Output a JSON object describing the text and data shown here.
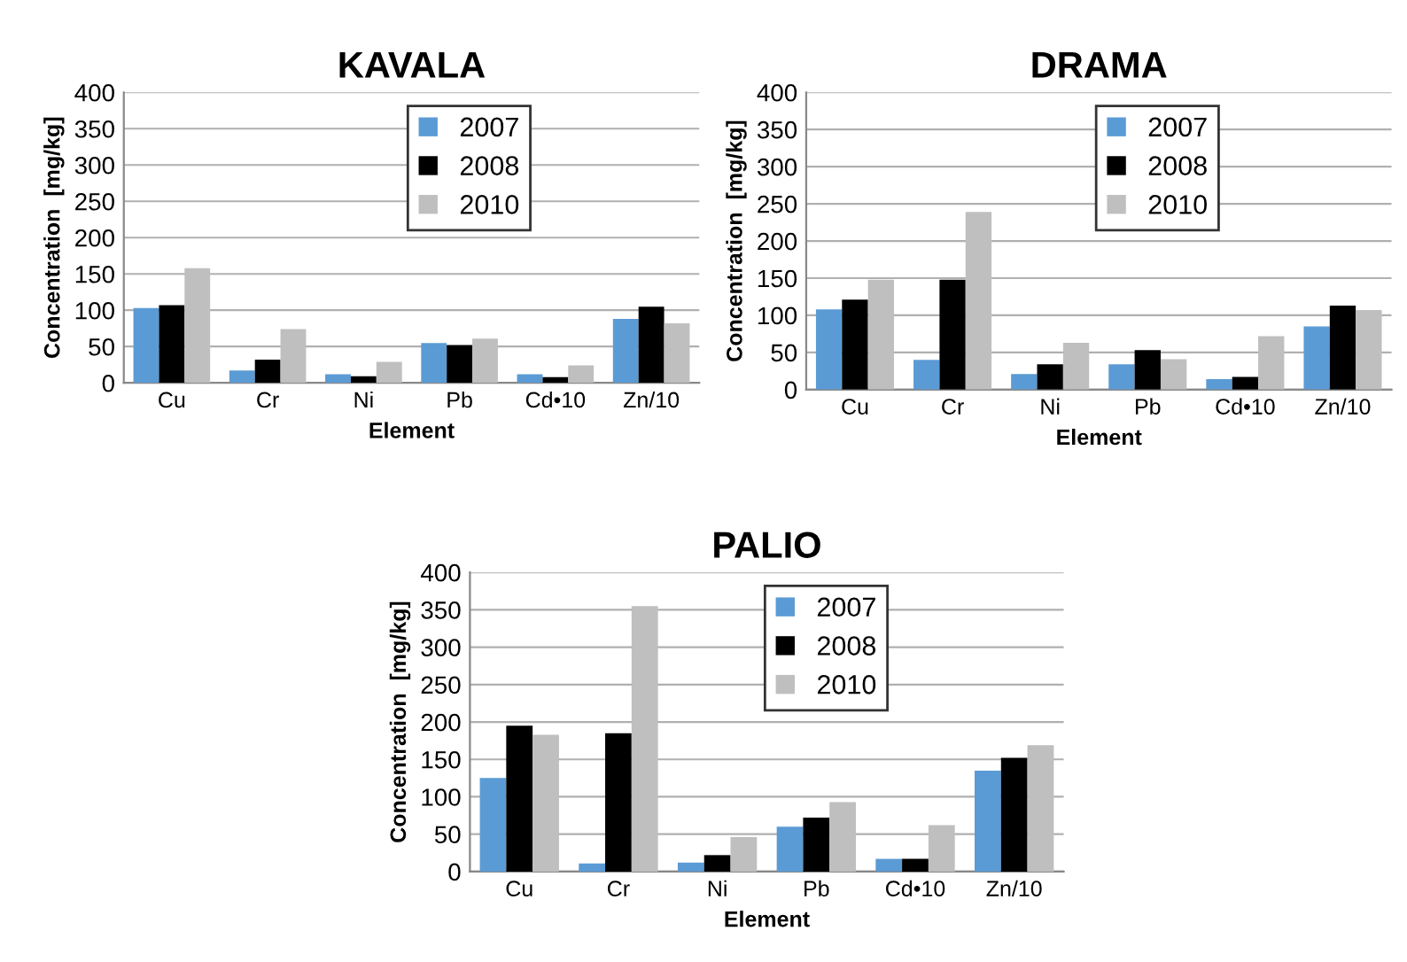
{
  "chart_data": [
    {
      "type": "bar",
      "title": "KAVALA",
      "xlabel": "Element",
      "ylabel": "Concentration  [mg/kg]",
      "categories": [
        "Cu",
        "Cr",
        "Ni",
        "Pb",
        "Cd•10",
        "Zn/10"
      ],
      "ylim": [
        0,
        400
      ],
      "yticks": [
        0,
        50,
        100,
        150,
        200,
        250,
        300,
        350,
        400
      ],
      "grid": "y",
      "legend": "top",
      "series": [
        {
          "name": "2007",
          "color": "#5b9bd5",
          "values": [
            103,
            17,
            12,
            55,
            12,
            88
          ]
        },
        {
          "name": "2008",
          "color": "#000000",
          "values": [
            107,
            32,
            9,
            52,
            8,
            105
          ]
        },
        {
          "name": "2010",
          "color": "#bfbfbf",
          "values": [
            158,
            74,
            29,
            61,
            24,
            82
          ]
        }
      ]
    },
    {
      "type": "bar",
      "title": "DRAMA",
      "xlabel": "Element",
      "ylabel": "Concentration  [mg/kg]",
      "categories": [
        "Cu",
        "Cr",
        "Ni",
        "Pb",
        "Cd•10",
        "Zn/10"
      ],
      "ylim": [
        0,
        400
      ],
      "yticks": [
        0,
        50,
        100,
        150,
        200,
        250,
        300,
        350,
        400
      ],
      "grid": "y",
      "legend": "top",
      "series": [
        {
          "name": "2007",
          "color": "#5b9bd5",
          "values": [
            108,
            40,
            21,
            34,
            14,
            85
          ]
        },
        {
          "name": "2008",
          "color": "#000000",
          "values": [
            121,
            148,
            34,
            53,
            17,
            113
          ]
        },
        {
          "name": "2010",
          "color": "#bfbfbf",
          "values": [
            148,
            239,
            63,
            41,
            72,
            107
          ]
        }
      ]
    },
    {
      "type": "bar",
      "title": "PALIO",
      "xlabel": "Element",
      "ylabel": "Concentration  [mg/kg]",
      "categories": [
        "Cu",
        "Cr",
        "Ni",
        "Pb",
        "Cd•10",
        "Zn/10"
      ],
      "ylim": [
        0,
        400
      ],
      "yticks": [
        0,
        50,
        100,
        150,
        200,
        250,
        300,
        350,
        400
      ],
      "grid": "y",
      "legend": "top",
      "series": [
        {
          "name": "2007",
          "color": "#5b9bd5",
          "values": [
            125,
            11,
            12,
            60,
            17,
            135
          ]
        },
        {
          "name": "2008",
          "color": "#000000",
          "values": [
            195,
            185,
            22,
            72,
            17,
            152
          ]
        },
        {
          "name": "2010",
          "color": "#bfbfbf",
          "values": [
            183,
            355,
            46,
            93,
            62,
            169
          ]
        }
      ]
    }
  ]
}
